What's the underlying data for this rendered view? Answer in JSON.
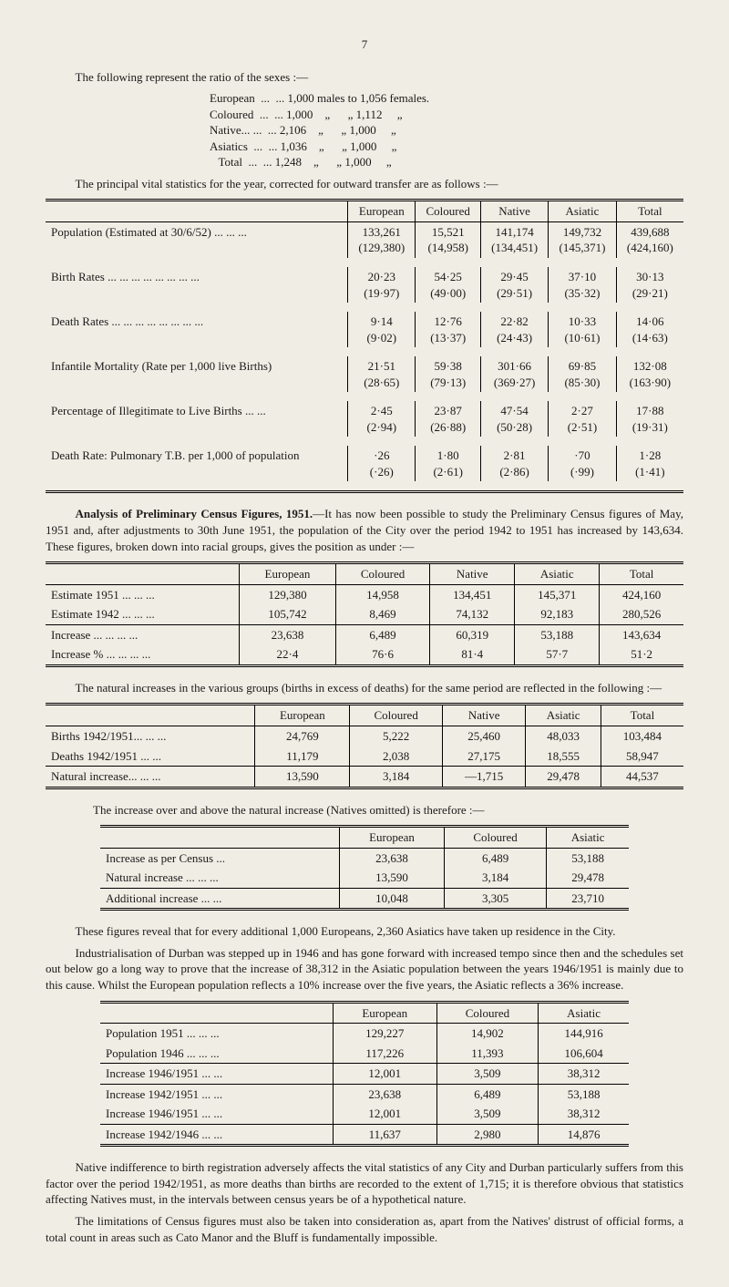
{
  "page_number": "7",
  "intro1": "The following represent the ratio of the sexes :—",
  "ratio": {
    "rows": [
      {
        "label": "European",
        "dots": "...  ...",
        "males": "1,000",
        "females": "1,056"
      },
      {
        "label": "Coloured",
        "dots": "...  ...",
        "males": "1,000",
        "females": "1,112"
      },
      {
        "label": "Native...",
        "dots": "...  ...",
        "males": "2,106",
        "females": "1,000"
      },
      {
        "label": "Asiatics",
        "dots": "...  ...",
        "males": "1,036",
        "females": "1,000"
      },
      {
        "label": "   Total",
        "dots": "...  ...",
        "males": "1,248",
        "females": "1,000"
      }
    ],
    "males_word": "males to",
    "females_word": "females.",
    "ditto": "„"
  },
  "intro2": "The principal vital statistics for the year, corrected for outward transfer are as follows :—",
  "table1": {
    "headers": [
      "",
      "European",
      "Coloured",
      "Native",
      "Asiatic",
      "Total"
    ],
    "rows": [
      {
        "label": "Population (Estimated at 30/6/52)     ...  ...  ...",
        "cells": [
          [
            "133,261",
            "(129,380)"
          ],
          [
            "15,521",
            "(14,958)"
          ],
          [
            "141,174",
            "(134,451)"
          ],
          [
            "149,732",
            "(145,371)"
          ],
          [
            "439,688",
            "(424,160)"
          ]
        ]
      },
      {
        "label": "Birth Rates     ...  ...  ...  ...  ...  ...  ...  ...",
        "cells": [
          [
            "20·23",
            "(19·97)"
          ],
          [
            "54·25",
            "(49·00)"
          ],
          [
            "29·45",
            "(29·51)"
          ],
          [
            "37·10",
            "(35·32)"
          ],
          [
            "30·13",
            "(29·21)"
          ]
        ]
      },
      {
        "label": "Death Rates    ...  ...  ...  ...  ...  ...  ...  ...",
        "cells": [
          [
            "9·14",
            "(9·02)"
          ],
          [
            "12·76",
            "(13·37)"
          ],
          [
            "22·82",
            "(24·43)"
          ],
          [
            "10·33",
            "(10·61)"
          ],
          [
            "14·06",
            "(14·63)"
          ]
        ]
      },
      {
        "label": "Infantile Mortality (Rate per 1,000 live Births)",
        "cells": [
          [
            "21·51",
            "(28·65)"
          ],
          [
            "59·38",
            "(79·13)"
          ],
          [
            "301·66",
            "(369·27)"
          ],
          [
            "69·85",
            "(85·30)"
          ],
          [
            "132·08",
            "(163·90)"
          ]
        ]
      },
      {
        "label": "Percentage of Illegitimate to Live Births  ...  ...",
        "cells": [
          [
            "2·45",
            "(2·94)"
          ],
          [
            "23·87",
            "(26·88)"
          ],
          [
            "47·54",
            "(50·28)"
          ],
          [
            "2·27",
            "(2·51)"
          ],
          [
            "17·88",
            "(19·31)"
          ]
        ]
      },
      {
        "label": "Death Rate: Pulmonary T.B. per 1,000 of population",
        "cells": [
          [
            "·26",
            "(·26)"
          ],
          [
            "1·80",
            "(2·61)"
          ],
          [
            "2·81",
            "(2·86)"
          ],
          [
            "·70",
            "(·99)"
          ],
          [
            "1·28",
            "(1·41)"
          ]
        ]
      }
    ]
  },
  "analysis_head": "Analysis of Preliminary Census Figures, 1951.",
  "analysis_body": "—It has now been possible to study the Preliminary Census figures of May, 1951 and, after adjustments to 30th June 1951, the population of the City over the period 1942 to 1951 has increased by 143,634. These figures, broken down into racial groups, gives the position as under :—",
  "table2": {
    "headers": [
      "",
      "European",
      "Coloured",
      "Native",
      "Asiatic",
      "Total"
    ],
    "rows": [
      {
        "label": "Estimate 1951    ...  ...  ...",
        "cells": [
          "129,380",
          "14,958",
          "134,451",
          "145,371",
          "424,160"
        ]
      },
      {
        "label": "Estimate 1942    ...  ...  ...",
        "cells": [
          "105,742",
          "8,469",
          "74,132",
          "92,183",
          "280,526"
        ]
      }
    ],
    "rows2": [
      {
        "label": "Increase      ...  ...  ...  ...",
        "cells": [
          "23,638",
          "6,489",
          "60,319",
          "53,188",
          "143,634"
        ]
      },
      {
        "label": "Increase %  ...  ...  ...  ...",
        "cells": [
          "22·4",
          "76·6",
          "81·4",
          "57·7",
          "51·2"
        ]
      }
    ]
  },
  "para_natural": "The natural increases in the various groups (births in excess of deaths) for the same period are reflected in the following :—",
  "table3": {
    "headers": [
      "",
      "European",
      "Coloured",
      "Native",
      "Asiatic",
      "Total"
    ],
    "rows": [
      {
        "label": "Births 1942/1951...   ...  ...",
        "cells": [
          "24,769",
          "5,222",
          "25,460",
          "48,033",
          "103,484"
        ]
      },
      {
        "label": "Deaths 1942/1951    ...  ...",
        "cells": [
          "11,179",
          "2,038",
          "27,175",
          "18,555",
          "58,947"
        ]
      }
    ],
    "rows2": [
      {
        "label": "Natural increase...  ...  ...",
        "cells": [
          "13,590",
          "3,184",
          "—1,715",
          "29,478",
          "44,537"
        ]
      }
    ]
  },
  "para_increase_over": "The increase over and above the natural increase (Natives omitted) is therefore :—",
  "table4": {
    "headers": [
      "",
      "European",
      "Coloured",
      "Asiatic"
    ],
    "rows": [
      {
        "label": "Increase as per Census    ...",
        "cells": [
          "23,638",
          "6,489",
          "53,188"
        ]
      },
      {
        "label": "Natural increase  ...  ...  ...",
        "cells": [
          "13,590",
          "3,184",
          "29,478"
        ]
      }
    ],
    "rows2": [
      {
        "label": "Additional increase    ...  ...",
        "cells": [
          "10,048",
          "3,305",
          "23,710"
        ]
      }
    ]
  },
  "para_reveal": "These figures reveal that for every additional 1,000 Europeans, 2,360 Asiatics have taken up residence in the City.",
  "para_industrial": "Industrialisation of Durban was stepped up in 1946 and has gone forward with increased tempo since then and the schedules set out below go a long way to prove that the increase of 38,312 in the Asiatic population between the years 1946/1951 is mainly due to this cause. Whilst the European population reflects a 10% increase over the five years, the Asiatic reflects a 36% increase.",
  "table5": {
    "headers": [
      "",
      "European",
      "Coloured",
      "Asiatic"
    ],
    "groups": [
      [
        {
          "label": "Population 1951  ...  ...  ...",
          "cells": [
            "129,227",
            "14,902",
            "144,916"
          ]
        },
        {
          "label": "Population 1946  ...  ...  ...",
          "cells": [
            "117,226",
            "11,393",
            "106,604"
          ]
        }
      ],
      [
        {
          "label": "Increase 1946/1951    ...  ...",
          "cells": [
            "12,001",
            "3,509",
            "38,312"
          ]
        }
      ],
      [
        {
          "label": "Increase 1942/1951    ...  ...",
          "cells": [
            "23,638",
            "6,489",
            "53,188"
          ]
        },
        {
          "label": "Increase 1946/1951    ...  ...",
          "cells": [
            "12,001",
            "3,509",
            "38,312"
          ]
        }
      ],
      [
        {
          "label": "Increase 1942/1946    ...  ...",
          "cells": [
            "11,637",
            "2,980",
            "14,876"
          ]
        }
      ]
    ]
  },
  "para_native": "Native indifference to birth registration adversely affects the vital statistics of any City and Durban particularly suffers from this factor over the period 1942/1951, as more deaths than births are recorded to the extent of 1,715; it is therefore obvious that statistics affecting Natives must, in the intervals between census years be of a hypothetical nature.",
  "para_limits": "The limitations of Census figures must also be taken into consideration as, apart from the Natives' distrust of official forms, a total count in areas such as Cato Manor and the Bluff is fundamentally impossible."
}
